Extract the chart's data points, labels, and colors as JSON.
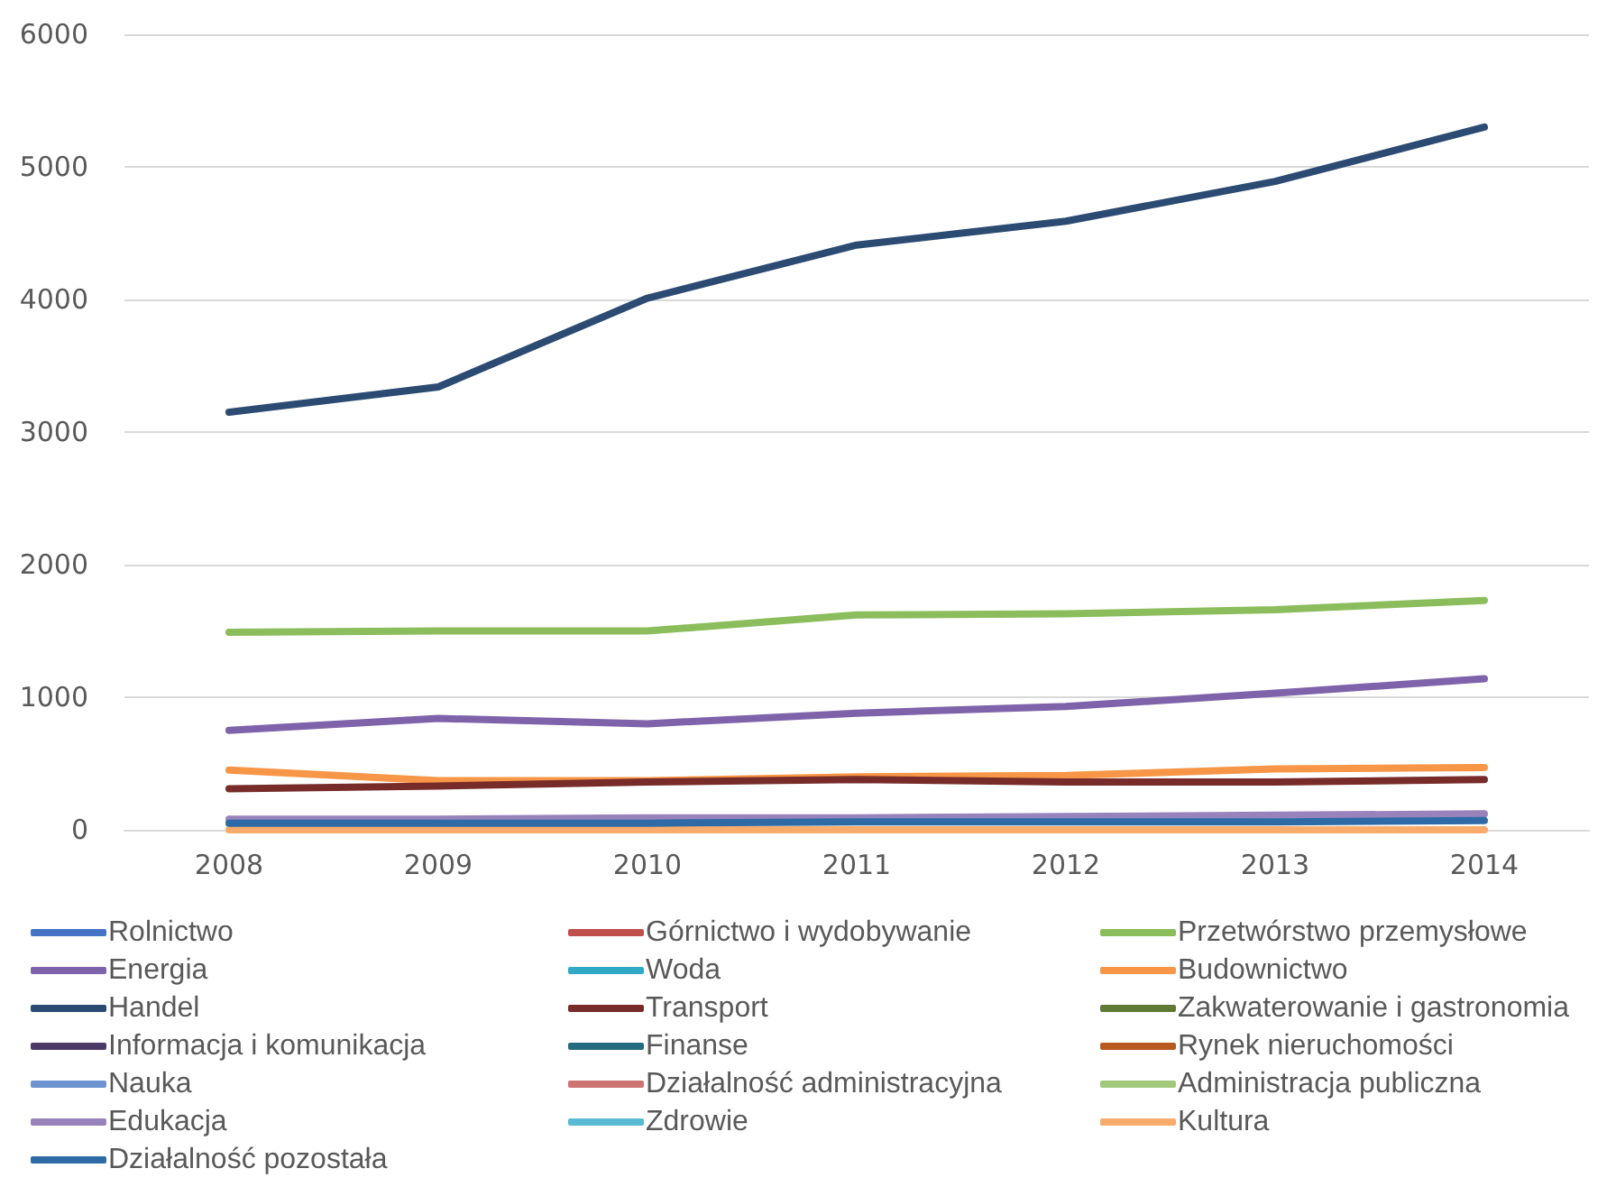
{
  "chart_data": {
    "type": "line",
    "categories": [
      "2008",
      "2009",
      "2010",
      "2011",
      "2012",
      "2013",
      "2014"
    ],
    "ylim": [
      0,
      6000
    ],
    "yticks": [
      0,
      1000,
      2000,
      3000,
      4000,
      5000,
      6000
    ],
    "grid": "y",
    "legend": "bottom",
    "line_style": "solid",
    "marker": "none",
    "series": [
      {
        "name": "Rolnictwo",
        "color": "#4472c4",
        "values": [
          null,
          null,
          null,
          null,
          null,
          null,
          null
        ]
      },
      {
        "name": "Górnictwo i wydobywanie",
        "color": "#c0504d",
        "values": [
          null,
          null,
          null,
          null,
          null,
          null,
          null
        ]
      },
      {
        "name": "Przetwórstwo przemysłowe",
        "color": "#8bbd5c",
        "values": [
          1490,
          1500,
          1500,
          1620,
          1630,
          1660,
          1730
        ]
      },
      {
        "name": "Energia",
        "color": "#7f63aa",
        "values": [
          750,
          840,
          800,
          880,
          930,
          1030,
          1140
        ]
      },
      {
        "name": "Woda",
        "color": "#2fa9c6",
        "values": [
          null,
          null,
          null,
          null,
          null,
          null,
          null
        ]
      },
      {
        "name": "Budownictwo",
        "color": "#f79646",
        "values": [
          450,
          370,
          370,
          400,
          410,
          460,
          470
        ]
      },
      {
        "name": "Handel",
        "color": "#2c4b73",
        "values": [
          3150,
          3340,
          4010,
          4410,
          4590,
          4890,
          5300
        ]
      },
      {
        "name": "Transport",
        "color": "#772c2a",
        "values": [
          310,
          330,
          360,
          380,
          360,
          360,
          380
        ]
      },
      {
        "name": "Zakwaterowanie i gastronomia",
        "color": "#5f7a35",
        "values": [
          null,
          null,
          null,
          null,
          null,
          null,
          null
        ]
      },
      {
        "name": "Informacja i komunikacja",
        "color": "#4b3a66",
        "values": [
          null,
          null,
          null,
          null,
          null,
          null,
          null
        ]
      },
      {
        "name": "Finanse",
        "color": "#286a7f",
        "values": [
          null,
          null,
          null,
          null,
          null,
          null,
          null
        ]
      },
      {
        "name": "Rynek nieruchomości",
        "color": "#b85a20",
        "values": [
          null,
          null,
          null,
          null,
          null,
          null,
          null
        ]
      },
      {
        "name": "Nauka",
        "color": "#6d94d1",
        "values": [
          null,
          null,
          null,
          null,
          null,
          null,
          null
        ]
      },
      {
        "name": "Działalność administracyjna",
        "color": "#cd7371",
        "values": [
          null,
          null,
          null,
          null,
          null,
          null,
          null
        ]
      },
      {
        "name": "Administracja publiczna",
        "color": "#a2c97b",
        "values": [
          null,
          null,
          null,
          null,
          null,
          null,
          null
        ]
      },
      {
        "name": "Edukacja",
        "color": "#9883bc",
        "values": [
          80,
          80,
          90,
          90,
          100,
          110,
          120
        ]
      },
      {
        "name": "Zdrowie",
        "color": "#59bbd3",
        "values": [
          null,
          null,
          null,
          null,
          null,
          null,
          null
        ]
      },
      {
        "name": "Kultura",
        "color": "#f9ab6b",
        "values": [
          0,
          0,
          0,
          0,
          0,
          0,
          0
        ]
      },
      {
        "name": "Działalność pozostała",
        "color": "#2e6aa5",
        "values": [
          50,
          50,
          50,
          60,
          60,
          60,
          70
        ]
      }
    ]
  }
}
